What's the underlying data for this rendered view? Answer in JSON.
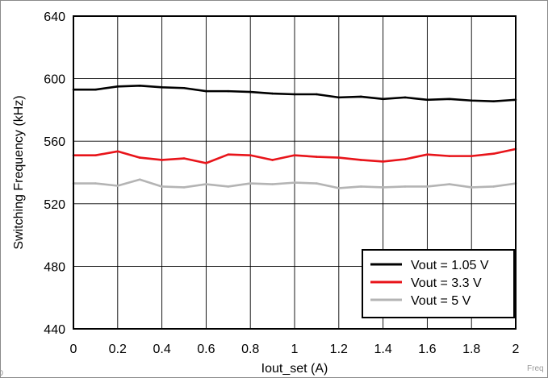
{
  "chart_data": {
    "type": "line",
    "title": "",
    "xlabel": "Iout_set (A)",
    "ylabel": "Switching Frequency (kHz)",
    "xlim": [
      0,
      2
    ],
    "ylim": [
      440,
      640
    ],
    "xticks": [
      "0",
      "0.2",
      "0.4",
      "0.6",
      "0.8",
      "1",
      "1.2",
      "1.4",
      "1.6",
      "1.8",
      "2"
    ],
    "yticks": [
      "440",
      "480",
      "520",
      "560",
      "600",
      "640"
    ],
    "grid": true,
    "legend_position": "bottom-right",
    "x": [
      0,
      0.1,
      0.2,
      0.3,
      0.4,
      0.5,
      0.6,
      0.7,
      0.8,
      0.9,
      1.0,
      1.1,
      1.2,
      1.3,
      1.4,
      1.5,
      1.6,
      1.7,
      1.8,
      1.9,
      2.0
    ],
    "series": [
      {
        "name": "Vout = 1.05 V",
        "color": "#000000",
        "values": [
          593,
          593,
          595,
          595.5,
          594.5,
          594,
          592,
          592,
          591.5,
          590.5,
          590,
          590,
          588,
          588.5,
          587,
          588,
          586.5,
          587,
          586,
          585.5,
          586.5
        ]
      },
      {
        "name": "Vout = 3.3 V",
        "color": "#e8141a",
        "values": [
          551,
          551,
          553.5,
          549.5,
          548,
          549,
          546,
          551.5,
          551,
          548,
          551,
          550,
          549.5,
          548,
          547,
          548.5,
          551.5,
          550.5,
          550.5,
          552,
          555
        ]
      },
      {
        "name": "Vout = 5 V",
        "color": "#b4b4b4",
        "values": [
          533,
          533,
          531.5,
          535.5,
          531,
          530.5,
          532.5,
          531,
          533,
          532.5,
          533.5,
          533,
          530,
          531,
          530.5,
          531,
          531,
          532.5,
          530.5,
          531,
          533
        ]
      }
    ]
  },
  "corner_left_text": "D",
  "corner_right_text": "Freq"
}
